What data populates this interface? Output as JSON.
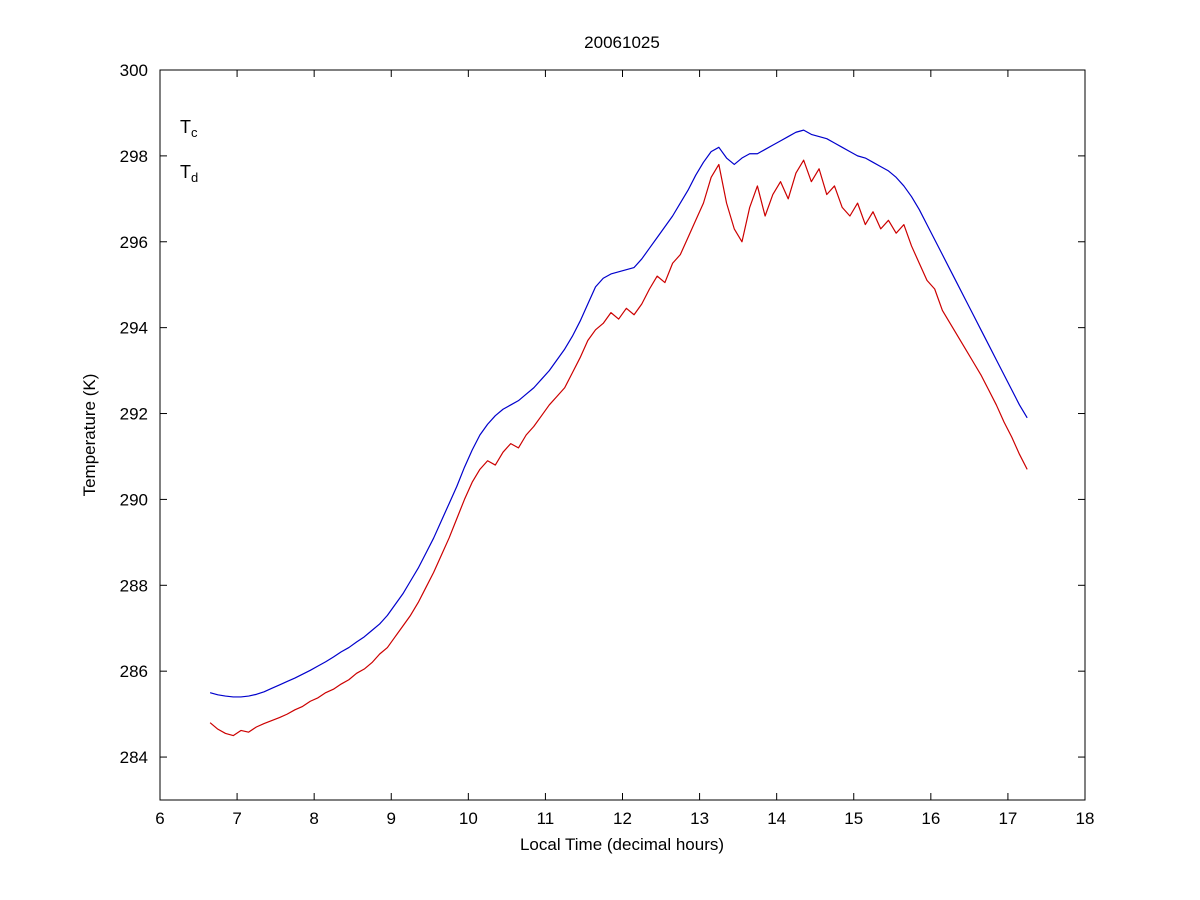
{
  "figure": {
    "background": "#ffffff",
    "axis_color": "#000000"
  },
  "chart_data": {
    "type": "line",
    "title": "20061025",
    "xlabel": "Local Time (decimal hours)",
    "ylabel": "Temperature (K)",
    "xlim": [
      6,
      18
    ],
    "ylim": [
      283,
      300
    ],
    "xticks": [
      6,
      7,
      8,
      9,
      10,
      11,
      12,
      13,
      14,
      15,
      16,
      17,
      18
    ],
    "yticks": [
      284,
      286,
      288,
      290,
      292,
      294,
      296,
      298,
      300
    ],
    "grid": false,
    "legend_position": "inside-top-left",
    "legend": [
      {
        "base": "T",
        "sub": "c",
        "color": "#0000cc"
      },
      {
        "base": "T",
        "sub": "d",
        "color": "#cc0000"
      }
    ],
    "x": [
      6.65,
      6.75,
      6.85,
      6.95,
      7.05,
      7.15,
      7.25,
      7.35,
      7.45,
      7.55,
      7.65,
      7.75,
      7.85,
      7.95,
      8.05,
      8.15,
      8.25,
      8.35,
      8.45,
      8.55,
      8.65,
      8.75,
      8.85,
      8.95,
      9.05,
      9.15,
      9.25,
      9.35,
      9.45,
      9.55,
      9.65,
      9.75,
      9.85,
      9.95,
      10.05,
      10.15,
      10.25,
      10.35,
      10.45,
      10.55,
      10.65,
      10.75,
      10.85,
      10.95,
      11.05,
      11.15,
      11.25,
      11.35,
      11.45,
      11.55,
      11.65,
      11.75,
      11.85,
      11.95,
      12.05,
      12.15,
      12.25,
      12.35,
      12.45,
      12.55,
      12.65,
      12.75,
      12.85,
      12.95,
      13.05,
      13.15,
      13.25,
      13.35,
      13.45,
      13.55,
      13.65,
      13.75,
      13.85,
      13.95,
      14.05,
      14.15,
      14.25,
      14.35,
      14.45,
      14.55,
      14.65,
      14.75,
      14.85,
      14.95,
      15.05,
      15.15,
      15.25,
      15.35,
      15.45,
      15.55,
      15.65,
      15.75,
      15.85,
      15.95,
      16.05,
      16.15,
      16.25,
      16.35,
      16.45,
      16.55,
      16.65,
      16.75,
      16.85,
      16.95,
      17.05,
      17.15,
      17.25
    ],
    "series": [
      {
        "name": "Tc",
        "color": "#0000cc",
        "values": [
          285.5,
          285.45,
          285.42,
          285.4,
          285.4,
          285.42,
          285.46,
          285.52,
          285.6,
          285.68,
          285.76,
          285.84,
          285.93,
          286.02,
          286.12,
          286.22,
          286.33,
          286.45,
          286.55,
          286.68,
          286.8,
          286.95,
          287.1,
          287.3,
          287.55,
          287.8,
          288.1,
          288.4,
          288.75,
          289.1,
          289.5,
          289.9,
          290.3,
          290.75,
          291.15,
          291.5,
          291.75,
          291.95,
          292.1,
          292.2,
          292.3,
          292.45,
          292.6,
          292.8,
          293.0,
          293.25,
          293.5,
          293.8,
          294.15,
          294.55,
          294.95,
          295.15,
          295.25,
          295.3,
          295.35,
          295.4,
          295.6,
          295.85,
          296.1,
          296.35,
          296.6,
          296.9,
          297.2,
          297.55,
          297.85,
          298.1,
          298.2,
          297.95,
          297.8,
          297.95,
          298.05,
          298.05,
          298.15,
          298.25,
          298.35,
          298.45,
          298.55,
          298.6,
          298.5,
          298.45,
          298.4,
          298.3,
          298.2,
          298.1,
          298.0,
          297.95,
          297.85,
          297.75,
          297.65,
          297.5,
          297.3,
          297.05,
          296.75,
          296.4,
          296.05,
          295.7,
          295.35,
          295.0,
          294.65,
          294.3,
          293.95,
          293.6,
          293.25,
          292.9,
          292.55,
          292.2,
          291.9
        ]
      },
      {
        "name": "Td",
        "color": "#cc0000",
        "values": [
          284.8,
          284.65,
          284.55,
          284.5,
          284.62,
          284.58,
          284.7,
          284.78,
          284.85,
          284.92,
          285.0,
          285.1,
          285.18,
          285.3,
          285.38,
          285.5,
          285.58,
          285.7,
          285.8,
          285.95,
          286.05,
          286.2,
          286.4,
          286.55,
          286.8,
          287.05,
          287.3,
          287.6,
          287.95,
          288.3,
          288.7,
          289.1,
          289.55,
          290.0,
          290.4,
          290.7,
          290.9,
          290.8,
          291.1,
          291.3,
          291.2,
          291.5,
          291.7,
          291.95,
          292.2,
          292.4,
          292.6,
          292.95,
          293.3,
          293.7,
          293.95,
          294.1,
          294.35,
          294.2,
          294.45,
          294.3,
          294.55,
          294.9,
          295.2,
          295.05,
          295.5,
          295.7,
          296.1,
          296.5,
          296.9,
          297.5,
          297.8,
          296.9,
          296.3,
          296.0,
          296.8,
          297.3,
          296.6,
          297.1,
          297.4,
          297.0,
          297.6,
          297.9,
          297.4,
          297.7,
          297.1,
          297.3,
          296.8,
          296.6,
          296.9,
          296.4,
          296.7,
          296.3,
          296.5,
          296.2,
          296.4,
          295.9,
          295.5,
          295.1,
          294.9,
          294.4,
          294.1,
          293.8,
          293.5,
          293.2,
          292.9,
          292.55,
          292.2,
          291.8,
          291.45,
          291.05,
          290.7
        ]
      }
    ]
  }
}
